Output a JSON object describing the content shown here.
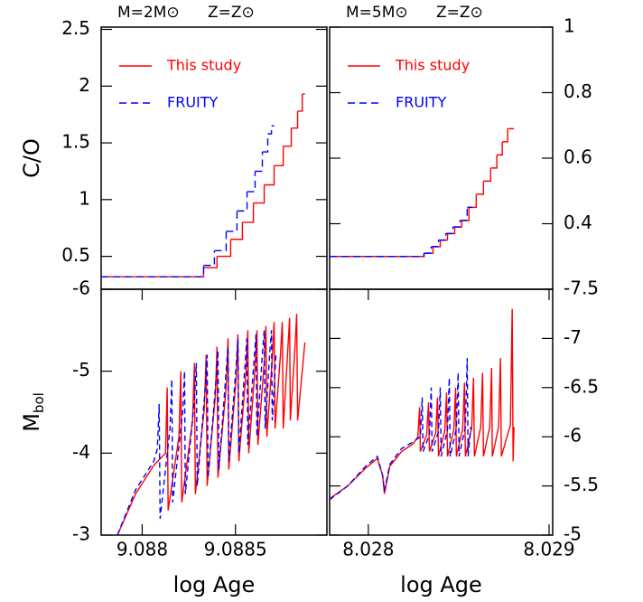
{
  "chart_data": [
    {
      "type": "step",
      "title_left": "M=2M⊙",
      "title_right": "Z=Z⊙",
      "y_label": "C/O",
      "y_axis_side": "left",
      "legend": "upper left",
      "xlim": [
        9.08778,
        9.08899
      ],
      "ylim": [
        0.21,
        2.52
      ],
      "yticks": [
        0.5,
        1,
        1.5,
        2,
        2.5
      ],
      "series": [
        {
          "name": "This study",
          "color": "#ff0000",
          "dash": false,
          "x": [
            9.08778,
            9.088329,
            9.088401,
            9.088474,
            9.088537,
            9.088596,
            9.088654,
            9.088707,
            9.088756,
            9.088799,
            9.088833,
            9.088858,
            9.088872
          ],
          "values": [
            0.32,
            0.4,
            0.5,
            0.65,
            0.8,
            0.97,
            1.13,
            1.3,
            1.47,
            1.63,
            1.78,
            1.93,
            1.93
          ]
        },
        {
          "name": "FRUITY",
          "color": "#0000ff",
          "dash": true,
          "x": [
            9.08778,
            9.088329,
            9.088387,
            9.08845,
            9.088508,
            9.088562,
            9.088605,
            9.088644,
            9.088673,
            9.088693,
            9.088707
          ],
          "values": [
            0.32,
            0.42,
            0.55,
            0.72,
            0.9,
            1.07,
            1.25,
            1.42,
            1.58,
            1.65,
            1.65
          ]
        }
      ]
    },
    {
      "type": "step",
      "title_left": "M=5M⊙",
      "title_right": "Z=Z⊙",
      "y_axis_side": "right",
      "legend": "upper left",
      "xlim": [
        8.027786,
        8.02902
      ],
      "ylim": [
        0.2,
        1
      ],
      "yticks": [
        0.4,
        0.6,
        0.8,
        1
      ],
      "series": [
        {
          "name": "This study",
          "color": "#ff0000",
          "dash": false,
          "x": [
            8.027786,
            8.028308,
            8.028358,
            8.028398,
            8.028438,
            8.028478,
            8.028517,
            8.028557,
            8.028597,
            8.028637,
            8.028677,
            8.028711,
            8.028741,
            8.028771,
            8.028806
          ],
          "values": [
            0.3,
            0.31,
            0.33,
            0.35,
            0.37,
            0.39,
            0.41,
            0.45,
            0.49,
            0.53,
            0.57,
            0.61,
            0.65,
            0.69,
            0.69
          ]
        },
        {
          "name": "FRUITY",
          "color": "#0000ff",
          "dash": true,
          "x": [
            8.027786,
            8.028308,
            8.028348,
            8.028388,
            8.028428,
            8.028468,
            8.028507,
            8.028547,
            8.028577
          ],
          "values": [
            0.3,
            0.31,
            0.33,
            0.35,
            0.37,
            0.39,
            0.41,
            0.45,
            0.45
          ]
        }
      ]
    },
    {
      "type": "line",
      "y_label": "M",
      "y_label_subscript": "bol",
      "x_label": "log Age",
      "y_axis_side": "left",
      "xlim": [
        9.08778,
        9.08899
      ],
      "ylim": [
        -3,
        -6
      ],
      "xticks": [
        9.088,
        9.0885
      ],
      "yticks": [
        -3,
        -4,
        -5,
        -6
      ],
      "series": [
        {
          "name": "This study",
          "color": "#ff0000",
          "dash": false,
          "x": [
            9.087867,
            9.087964,
            9.088062,
            9.088125,
            9.088134,
            9.088139,
            9.088197,
            9.088207,
            9.088212,
            9.08827,
            9.08828,
            9.088285,
            9.088333,
            9.088343,
            9.088348,
            9.088392,
            9.088401,
            9.088406,
            9.08845,
            9.08846,
            9.088464,
            9.088503,
            9.088513,
            9.088518,
            9.088557,
            9.088566,
            9.088571,
            9.088605,
            9.088615,
            9.08862,
            9.088654,
            9.088663,
            9.088668,
            9.088697,
            9.088707,
            9.088712,
            9.088741,
            9.088751,
            9.088756,
            9.08878,
            9.08879,
            9.088794,
            9.088819,
            9.088828,
            9.088833,
            9.088872
          ],
          "values": [
            -3,
            -3.5,
            -3.85,
            -4.0,
            -4.8,
            -3.3,
            -4.2,
            -5.0,
            -3.4,
            -4.4,
            -5.1,
            -3.5,
            -4.55,
            -5.2,
            -3.6,
            -4.7,
            -5.3,
            -3.7,
            -4.8,
            -5.4,
            -3.8,
            -4.9,
            -5.45,
            -3.9,
            -5.0,
            -5.5,
            -4.0,
            -5.05,
            -5.5,
            -4.1,
            -5.1,
            -5.55,
            -4.2,
            -5.15,
            -5.6,
            -4.3,
            -5.2,
            -5.6,
            -4.3,
            -5.25,
            -5.65,
            -4.4,
            -5.3,
            -5.7,
            -4.4,
            -5.35
          ]
        },
        {
          "name": "FRUITY",
          "color": "#0000ff",
          "dash": true,
          "x": [
            9.087867,
            9.087964,
            9.088062,
            9.088081,
            9.088091,
            9.088096,
            9.088149,
            9.088159,
            9.088163,
            9.088217,
            9.088227,
            9.088231,
            9.08828,
            9.08829,
            9.088295,
            9.088338,
            9.088348,
            9.088353,
            9.088396,
            9.088406,
            9.088411,
            9.08845,
            9.08846,
            9.088464,
            9.088503,
            9.088513,
            9.088518,
            9.088552,
            9.088561,
            9.088566,
            9.0886,
            9.08861,
            9.088615,
            9.088644,
            9.088654,
            9.088659,
            9.088683,
            9.088693,
            9.088697,
            9.088717
          ],
          "values": [
            -3,
            -3.55,
            -3.9,
            -4.05,
            -4.6,
            -3.2,
            -4.3,
            -4.9,
            -3.4,
            -4.5,
            -5.0,
            -3.5,
            -4.65,
            -5.1,
            -3.6,
            -4.8,
            -5.2,
            -3.7,
            -4.9,
            -5.25,
            -3.8,
            -5.0,
            -5.3,
            -3.9,
            -5.05,
            -5.4,
            -4.0,
            -5.1,
            -5.4,
            -4.1,
            -5.15,
            -5.45,
            -4.2,
            -5.2,
            -5.5,
            -4.3,
            -5.2,
            -5.5,
            -4.4,
            -5.2
          ]
        }
      ]
    },
    {
      "type": "line",
      "x_label": "log Age",
      "y_axis_side": "right",
      "xlim": [
        8.027786,
        8.02902
      ],
      "ylim": [
        -5,
        -7.5
      ],
      "xticks": [
        8.028,
        8.029
      ],
      "yticks": [
        -5,
        -5.5,
        -6,
        -6.5,
        -7,
        -7.5
      ],
      "series": [
        {
          "name": "This study",
          "color": "#ff0000",
          "dash": false,
          "x": [
            8.027786,
            8.027886,
            8.027985,
            8.02805,
            8.02808,
            8.028089,
            8.028119,
            8.028184,
            8.028249,
            8.028274,
            8.028284,
            8.028288,
            8.028323,
            8.028333,
            8.028338,
            8.028373,
            8.028383,
            8.028388,
            8.028423,
            8.028433,
            8.028438,
            8.028473,
            8.028483,
            8.028487,
            8.028522,
            8.028532,
            8.028537,
            8.028572,
            8.028582,
            8.028587,
            8.028622,
            8.028632,
            8.028637,
            8.028672,
            8.028682,
            8.028686,
            8.028721,
            8.028731,
            8.028736,
            8.028786,
            8.028796,
            8.028801,
            8.028806
          ],
          "values": [
            -5.37,
            -5.5,
            -5.68,
            -5.78,
            -5.6,
            -5.42,
            -5.7,
            -5.85,
            -5.93,
            -6.0,
            -6.3,
            -5.85,
            -6.02,
            -6.35,
            -5.85,
            -6.04,
            -6.4,
            -5.8,
            -6.06,
            -6.45,
            -5.8,
            -6.07,
            -6.5,
            -5.8,
            -6.08,
            -6.55,
            -5.8,
            -6.09,
            -6.6,
            -5.8,
            -6.1,
            -6.65,
            -5.8,
            -6.1,
            -6.7,
            -5.8,
            -6.1,
            -6.8,
            -5.8,
            -6.12,
            -7.3,
            -5.75,
            -6.1
          ]
        },
        {
          "name": "FRUITY",
          "color": "#0000ff",
          "dash": true,
          "x": [
            8.027786,
            8.027886,
            8.027985,
            8.02805,
            8.02808,
            8.028089,
            8.028119,
            8.028184,
            8.028249,
            8.028288,
            8.028298,
            8.028303,
            8.028338,
            8.028348,
            8.028353,
            8.028388,
            8.028398,
            8.028403,
            8.028438,
            8.028448,
            8.028453,
            8.028487,
            8.028497,
            8.028502,
            8.028537,
            8.028547,
            8.028552,
            8.028567
          ],
          "values": [
            -5.36,
            -5.5,
            -5.7,
            -5.8,
            -5.6,
            -5.45,
            -5.72,
            -5.88,
            -5.95,
            -6.0,
            -6.4,
            -5.85,
            -6.02,
            -6.5,
            -5.85,
            -6.05,
            -6.5,
            -5.8,
            -6.07,
            -6.6,
            -5.8,
            -6.08,
            -6.65,
            -5.8,
            -6.1,
            -6.8,
            -5.8,
            -6.1
          ]
        }
      ]
    }
  ]
}
